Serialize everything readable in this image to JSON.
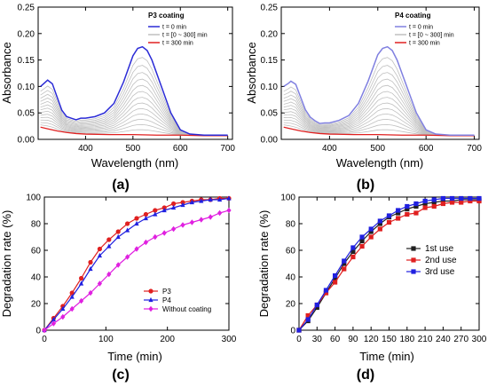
{
  "chart_data": [
    {
      "type": "line",
      "panel_label": "(a)",
      "xlabel": "Wavelength (nm)",
      "ylabel": "Absorbance",
      "xlim": [
        300,
        710
      ],
      "ylim": [
        0,
        0.25
      ],
      "xticks": [
        "400",
        "500",
        "600",
        "700"
      ],
      "yticks": [
        "0.00",
        "0.05",
        "0.10",
        "0.15",
        "0.20",
        "0.25"
      ],
      "legend_title": "P3 coating",
      "legend_position": "top-right",
      "series": [
        {
          "name": "t = 0 min",
          "color": "#2b2bd6",
          "x": [
            305,
            315,
            320,
            330,
            340,
            350,
            360,
            370,
            380,
            390,
            400,
            420,
            440,
            460,
            480,
            500,
            510,
            520,
            530,
            540,
            560,
            580,
            600,
            620,
            650,
            700
          ],
          "y": [
            0.1,
            0.108,
            0.112,
            0.105,
            0.08,
            0.055,
            0.043,
            0.04,
            0.037,
            0.04,
            0.04,
            0.043,
            0.05,
            0.068,
            0.108,
            0.158,
            0.172,
            0.175,
            0.168,
            0.15,
            0.1,
            0.05,
            0.018,
            0.01,
            0.008,
            0.008
          ]
        },
        {
          "name": "t = [0 ~ 300] min",
          "color": "#c0c0c0",
          "repeats": 13
        },
        {
          "name": "t = 300 min",
          "color": "#e02020",
          "x": [
            305,
            320,
            340,
            360,
            380,
            400,
            450,
            500,
            550,
            600,
            650,
            700
          ],
          "y": [
            0.023,
            0.02,
            0.016,
            0.013,
            0.011,
            0.01,
            0.009,
            0.009,
            0.008,
            0.008,
            0.007,
            0.007
          ]
        }
      ]
    },
    {
      "type": "line",
      "panel_label": "(b)",
      "xlabel": "Wavelength (nm)",
      "ylabel": "Absorbance",
      "xlim": [
        300,
        710
      ],
      "ylim": [
        0,
        0.25
      ],
      "xticks": [
        "400",
        "500",
        "600",
        "700"
      ],
      "yticks": [
        "0.00",
        "0.05",
        "0.10",
        "0.15",
        "0.20",
        "0.25"
      ],
      "legend_title": "P4 coating",
      "legend_position": "top-right",
      "series": [
        {
          "name": "t = 0 min",
          "color": "#8080e0",
          "x": [
            305,
            315,
            320,
            330,
            340,
            350,
            360,
            370,
            380,
            390,
            400,
            420,
            440,
            460,
            480,
            500,
            510,
            520,
            530,
            540,
            560,
            580,
            600,
            620,
            650,
            700
          ],
          "y": [
            0.1,
            0.106,
            0.11,
            0.104,
            0.08,
            0.056,
            0.042,
            0.035,
            0.03,
            0.031,
            0.031,
            0.036,
            0.045,
            0.068,
            0.11,
            0.16,
            0.172,
            0.175,
            0.168,
            0.15,
            0.1,
            0.05,
            0.018,
            0.01,
            0.008,
            0.008
          ]
        },
        {
          "name": "t = [0 ~ 300] min",
          "color": "#c0c0c0",
          "repeats": 13
        },
        {
          "name": "t = 300 min",
          "color": "#e02020",
          "x": [
            305,
            320,
            340,
            360,
            380,
            400,
            450,
            500,
            550,
            600,
            650,
            700
          ],
          "y": [
            0.023,
            0.02,
            0.016,
            0.013,
            0.011,
            0.01,
            0.009,
            0.009,
            0.008,
            0.008,
            0.007,
            0.007
          ]
        }
      ]
    },
    {
      "type": "line",
      "panel_label": "(c)",
      "xlabel": "Time (min)",
      "ylabel": "Degradation rate (%)",
      "xlim": [
        0,
        300
      ],
      "ylim": [
        0,
        100
      ],
      "xticks": [
        "0",
        "100",
        "200",
        "300"
      ],
      "yticks": [
        "0",
        "20",
        "40",
        "60",
        "80",
        "100"
      ],
      "legend_position": "bottom-right",
      "categories": [
        0,
        15,
        30,
        45,
        60,
        75,
        90,
        105,
        120,
        135,
        150,
        165,
        180,
        195,
        210,
        225,
        240,
        255,
        270,
        285,
        300
      ],
      "series": [
        {
          "name": "P3",
          "color": "#e02020",
          "marker": "circle",
          "values": [
            0,
            9,
            18,
            28,
            39,
            51,
            61,
            68,
            74,
            80,
            84,
            87,
            90,
            92,
            95,
            96,
            97,
            98,
            98,
            99,
            99
          ]
        },
        {
          "name": "P4",
          "color": "#2020e0",
          "marker": "triangle",
          "values": [
            0,
            8,
            16,
            25,
            35,
            46,
            56,
            63,
            70,
            75,
            80,
            84,
            87,
            90,
            92,
            94,
            96,
            97,
            98,
            98,
            99
          ]
        },
        {
          "name": "Without coating",
          "color": "#e020e0",
          "marker": "diamond",
          "values": [
            0,
            5,
            10,
            16,
            22,
            28,
            35,
            42,
            49,
            55,
            61,
            66,
            70,
            73,
            76,
            79,
            81,
            83,
            85,
            88,
            90
          ]
        }
      ]
    },
    {
      "type": "line",
      "panel_label": "(d)",
      "xlabel": "Time (min)",
      "ylabel": "Degradation rate (%)",
      "xlim": [
        0,
        300
      ],
      "ylim": [
        0,
        100
      ],
      "xticks": [
        "0",
        "30",
        "60",
        "90",
        "120",
        "150",
        "180",
        "210",
        "240",
        "270",
        "300"
      ],
      "yticks": [
        "0",
        "20",
        "40",
        "60",
        "80",
        "100"
      ],
      "legend_position": "center-right",
      "categories": [
        0,
        15,
        30,
        45,
        60,
        75,
        90,
        105,
        120,
        135,
        150,
        165,
        180,
        195,
        210,
        225,
        240,
        255,
        270,
        285,
        300
      ],
      "series": [
        {
          "name": "1st use",
          "color": "#202020",
          "marker": "square",
          "values": [
            0,
            7,
            17,
            28,
            39,
            50,
            59,
            67,
            74,
            80,
            85,
            88,
            91,
            93,
            95,
            96,
            97,
            97,
            98,
            98,
            98
          ]
        },
        {
          "name": "2nd use",
          "color": "#e02020",
          "marker": "square",
          "values": [
            0,
            11,
            19,
            28,
            36,
            46,
            55,
            63,
            70,
            76,
            81,
            84,
            87,
            88,
            92,
            93,
            95,
            96,
            96,
            97,
            97
          ]
        },
        {
          "name": "3rd use",
          "color": "#2020e0",
          "marker": "square",
          "values": [
            0,
            8,
            19,
            30,
            41,
            52,
            62,
            70,
            76,
            82,
            86,
            90,
            93,
            95,
            97,
            98,
            99,
            99,
            99,
            99,
            99
          ]
        }
      ]
    }
  ]
}
